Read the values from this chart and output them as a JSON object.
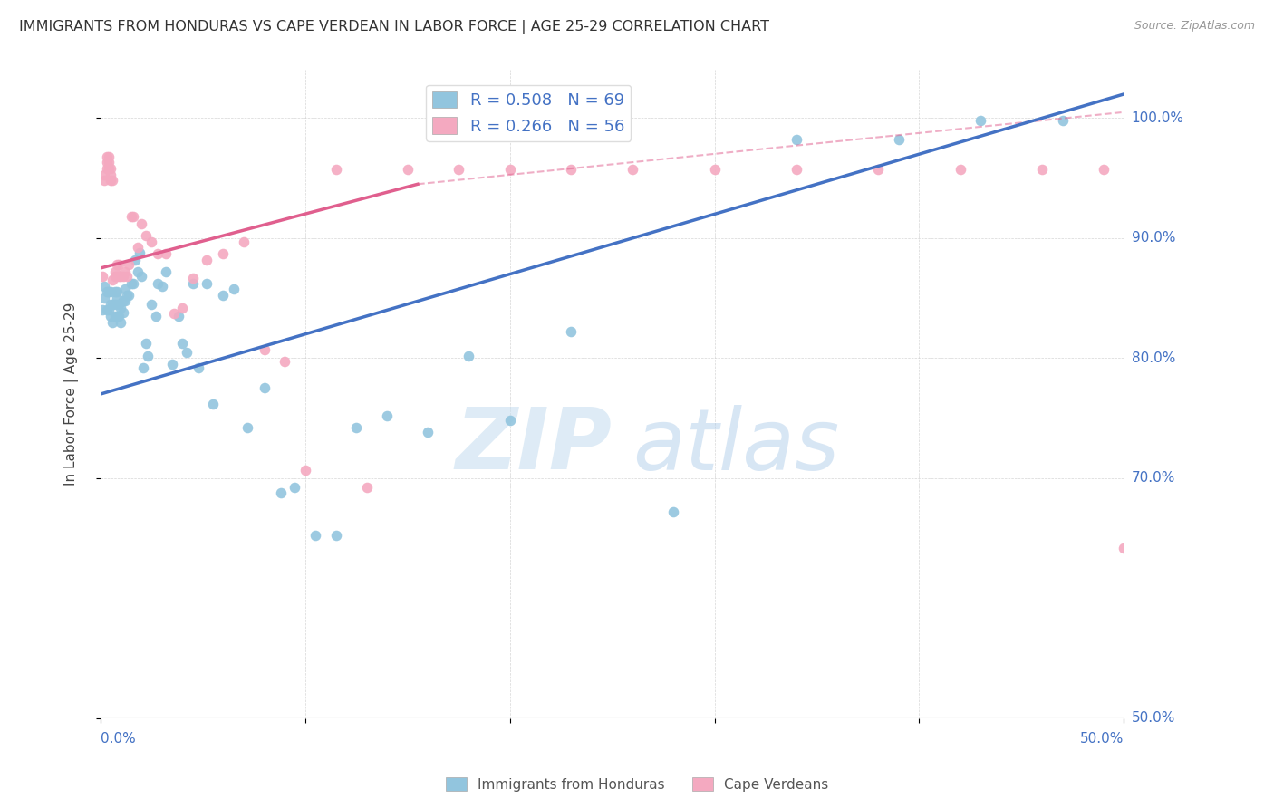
{
  "title": "IMMIGRANTS FROM HONDURAS VS CAPE VERDEAN IN LABOR FORCE | AGE 25-29 CORRELATION CHART",
  "source": "Source: ZipAtlas.com",
  "ylabel": "In Labor Force | Age 25-29",
  "xlim": [
    0.0,
    0.5
  ],
  "ylim": [
    0.5,
    1.04
  ],
  "blue_color": "#92c5de",
  "pink_color": "#f4a9c0",
  "blue_line_color": "#4472c4",
  "pink_line_color": "#e05f8e",
  "legend_blue_label": "R = 0.508   N = 69",
  "legend_pink_label": "R = 0.266   N = 56",
  "legend_bottom_blue": "Immigrants from Honduras",
  "legend_bottom_pink": "Cape Verdeans",
  "blue_x": [
    0.001,
    0.002,
    0.002,
    0.003,
    0.003,
    0.004,
    0.004,
    0.005,
    0.005,
    0.005,
    0.006,
    0.006,
    0.007,
    0.007,
    0.007,
    0.008,
    0.008,
    0.008,
    0.009,
    0.009,
    0.01,
    0.01,
    0.011,
    0.011,
    0.012,
    0.012,
    0.013,
    0.014,
    0.015,
    0.016,
    0.017,
    0.018,
    0.019,
    0.02,
    0.021,
    0.022,
    0.023,
    0.025,
    0.027,
    0.028,
    0.03,
    0.032,
    0.035,
    0.038,
    0.04,
    0.042,
    0.045,
    0.048,
    0.052,
    0.055,
    0.06,
    0.065,
    0.072,
    0.08,
    0.088,
    0.095,
    0.105,
    0.115,
    0.125,
    0.14,
    0.16,
    0.18,
    0.2,
    0.23,
    0.28,
    0.34,
    0.39,
    0.43,
    0.47
  ],
  "blue_y": [
    0.84,
    0.85,
    0.86,
    0.84,
    0.855,
    0.84,
    0.855,
    0.835,
    0.845,
    0.855,
    0.83,
    0.845,
    0.835,
    0.845,
    0.855,
    0.835,
    0.85,
    0.855,
    0.835,
    0.845,
    0.83,
    0.842,
    0.838,
    0.848,
    0.848,
    0.858,
    0.852,
    0.852,
    0.862,
    0.862,
    0.882,
    0.872,
    0.888,
    0.868,
    0.792,
    0.812,
    0.802,
    0.845,
    0.835,
    0.862,
    0.86,
    0.872,
    0.795,
    0.835,
    0.812,
    0.805,
    0.862,
    0.792,
    0.862,
    0.762,
    0.852,
    0.858,
    0.742,
    0.775,
    0.688,
    0.692,
    0.652,
    0.652,
    0.742,
    0.752,
    0.738,
    0.802,
    0.748,
    0.822,
    0.672,
    0.982,
    0.982,
    0.998,
    0.998
  ],
  "pink_x": [
    0.001,
    0.002,
    0.002,
    0.003,
    0.003,
    0.003,
    0.004,
    0.004,
    0.004,
    0.005,
    0.005,
    0.005,
    0.006,
    0.006,
    0.007,
    0.007,
    0.008,
    0.008,
    0.009,
    0.009,
    0.01,
    0.011,
    0.012,
    0.013,
    0.014,
    0.015,
    0.016,
    0.018,
    0.02,
    0.022,
    0.025,
    0.028,
    0.032,
    0.036,
    0.04,
    0.045,
    0.052,
    0.06,
    0.07,
    0.08,
    0.09,
    0.1,
    0.115,
    0.13,
    0.15,
    0.175,
    0.2,
    0.23,
    0.26,
    0.3,
    0.34,
    0.38,
    0.42,
    0.46,
    0.49,
    0.5
  ],
  "pink_y": [
    0.868,
    0.948,
    0.953,
    0.958,
    0.963,
    0.968,
    0.958,
    0.963,
    0.968,
    0.948,
    0.953,
    0.958,
    0.865,
    0.948,
    0.868,
    0.872,
    0.868,
    0.878,
    0.868,
    0.878,
    0.868,
    0.868,
    0.872,
    0.868,
    0.878,
    0.918,
    0.918,
    0.892,
    0.912,
    0.902,
    0.897,
    0.887,
    0.887,
    0.837,
    0.842,
    0.867,
    0.882,
    0.887,
    0.897,
    0.807,
    0.797,
    0.707,
    0.957,
    0.692,
    0.957,
    0.957,
    0.957,
    0.957,
    0.957,
    0.957,
    0.957,
    0.957,
    0.957,
    0.957,
    0.957,
    0.642
  ]
}
